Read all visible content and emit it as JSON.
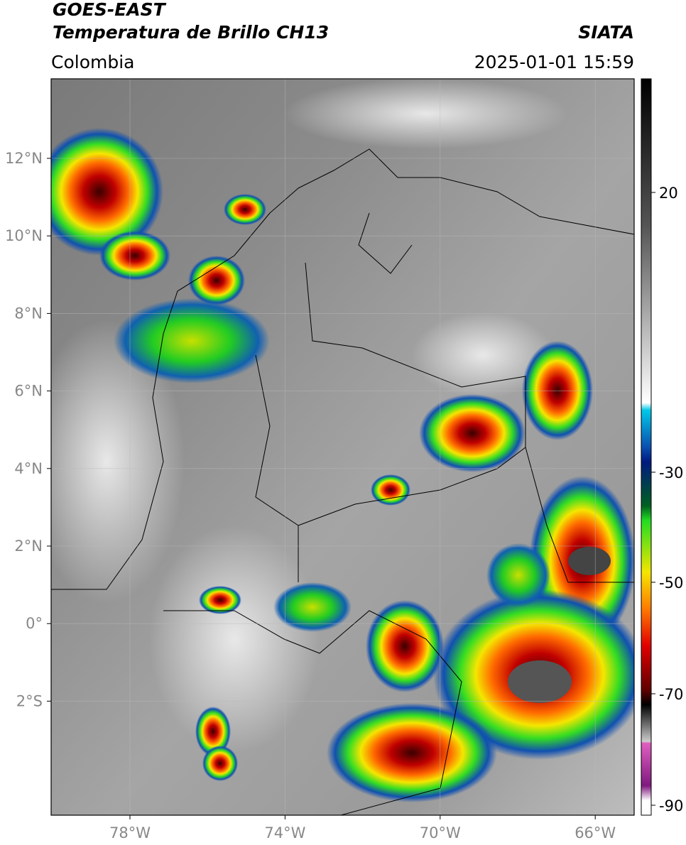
{
  "header": {
    "satellite": "GOES-EAST",
    "product": "Temperatura de Brillo CH13",
    "region": "Colombia",
    "agency": "SIATA",
    "datetime": "2025-01-01 15:59"
  },
  "map": {
    "lat_ticks": [
      "12°N",
      "10°N",
      "8°N",
      "6°N",
      "4°N",
      "2°N",
      "0°",
      "2°S"
    ],
    "lon_ticks": [
      "78°W",
      "74°W",
      "70°W",
      "66°W"
    ]
  },
  "colorbar": {
    "ticks": [
      "20",
      "-30",
      "-50",
      "-70",
      "-90"
    ]
  }
}
